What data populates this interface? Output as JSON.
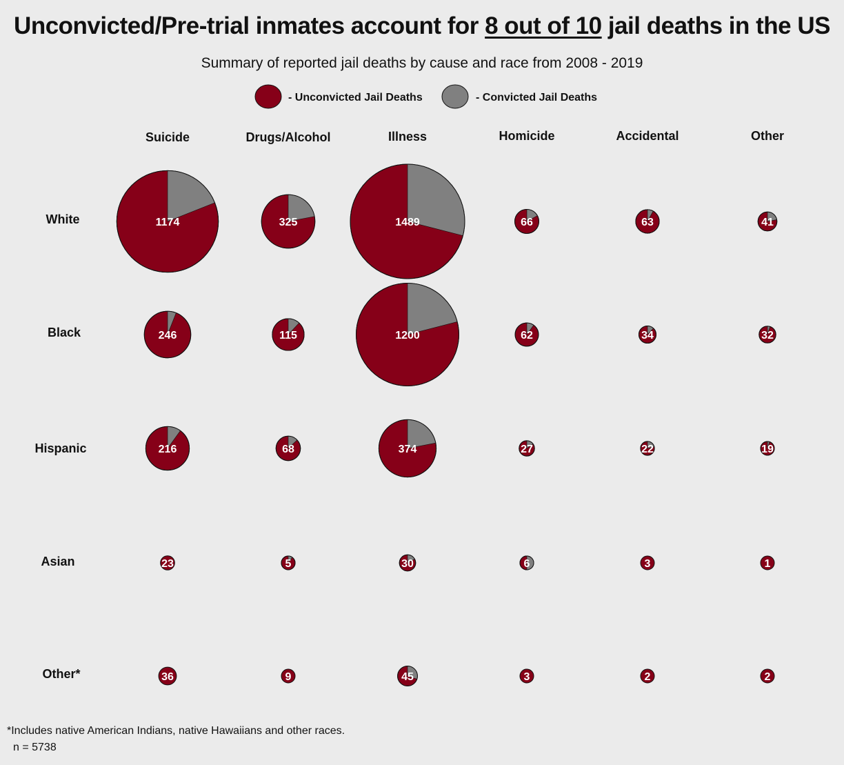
{
  "header": {
    "title_pre": "Unconvicted/Pre-trial inmates account for ",
    "title_highlight": "8 out of 10",
    "title_post": " jail deaths in the US",
    "subtitle": "Summary of reported jail deaths by cause and race from 2008 - 2019"
  },
  "legend": {
    "unconvicted_label": "- Unconvicted Jail Deaths",
    "convicted_label": "- Convicted Jail Deaths"
  },
  "footnote": {
    "note": "*Includes native American Indians, native Hawaiians and other races.",
    "n": "n = 5738"
  },
  "colors": {
    "unconvicted": "#860018",
    "convicted": "#808080",
    "background": "#ebebeb"
  },
  "chart_data": {
    "type": "pie",
    "title": "Unconvicted/Pre-trial inmates account for 8 out of 10 jail deaths in the US",
    "subtitle": "Summary of reported jail deaths by cause and race from 2008 - 2019",
    "columns": [
      "Suicide",
      "Drugs/Alcohol",
      "Illness",
      "Homicide",
      "Accidental",
      "Other"
    ],
    "rows": [
      "White",
      "Black",
      "Hispanic",
      "Asian",
      "Other*"
    ],
    "series": [
      "Unconvicted Jail Deaths",
      "Convicted Jail Deaths"
    ],
    "totals": [
      [
        1174,
        325,
        1489,
        66,
        63,
        41
      ],
      [
        246,
        115,
        1200,
        62,
        34,
        32
      ],
      [
        216,
        68,
        374,
        27,
        22,
        19
      ],
      [
        23,
        5,
        30,
        6,
        3,
        1
      ],
      [
        36,
        9,
        45,
        3,
        2,
        2
      ]
    ],
    "convicted_share": [
      [
        0.19,
        0.22,
        0.29,
        0.17,
        0.08,
        0.22
      ],
      [
        0.06,
        0.12,
        0.21,
        0.1,
        0.12,
        0.05
      ],
      [
        0.1,
        0.13,
        0.22,
        0.15,
        0.21,
        0.05
      ],
      [
        0.0,
        0.1,
        0.17,
        0.5,
        0.0,
        0.0
      ],
      [
        0.0,
        0.0,
        0.3,
        0.0,
        0.0,
        0.0
      ]
    ]
  }
}
